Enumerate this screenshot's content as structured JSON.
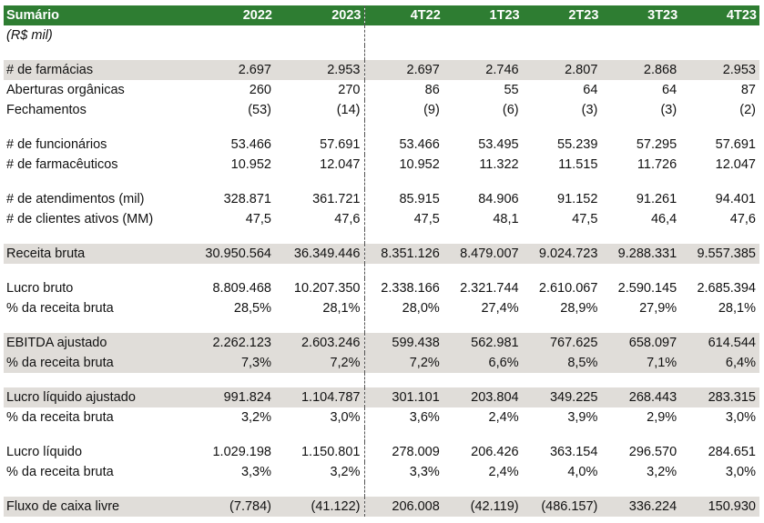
{
  "header": {
    "title": "Sumário",
    "columns": [
      "2022",
      "2023",
      "4T22",
      "1T23",
      "2T23",
      "3T23",
      "4T23"
    ]
  },
  "subtitle": "(R$ mil)",
  "rows": [
    {
      "label": "# de farmácias",
      "values": [
        "2.697",
        "2.953",
        "2.697",
        "2.746",
        "2.807",
        "2.868",
        "2.953"
      ]
    },
    {
      "label": "Aberturas orgânicas",
      "values": [
        "260",
        "270",
        "86",
        "55",
        "64",
        "64",
        "87"
      ]
    },
    {
      "label": "Fechamentos",
      "values": [
        "(53)",
        "(14)",
        "(9)",
        "(6)",
        "(3)",
        "(3)",
        "(2)"
      ]
    },
    {
      "label": "# de funcionários",
      "values": [
        "53.466",
        "57.691",
        "53.466",
        "53.495",
        "55.239",
        "57.295",
        "57.691"
      ]
    },
    {
      "label": "# de farmacêuticos",
      "values": [
        "10.952",
        "12.047",
        "10.952",
        "11.322",
        "11.515",
        "11.726",
        "12.047"
      ]
    },
    {
      "label": "# de atendimentos (mil)",
      "values": [
        "328.871",
        "361.721",
        "85.915",
        "84.906",
        "91.152",
        "91.261",
        "94.401"
      ]
    },
    {
      "label": "# de clientes ativos (MM)",
      "values": [
        "47,5",
        "47,6",
        "47,5",
        "48,1",
        "47,5",
        "46,4",
        "47,6"
      ]
    },
    {
      "label": "Receita bruta",
      "values": [
        "30.950.564",
        "36.349.446",
        "8.351.126",
        "8.479.007",
        "9.024.723",
        "9.288.331",
        "9.557.385"
      ]
    },
    {
      "label": "Lucro bruto",
      "values": [
        "8.809.468",
        "10.207.350",
        "2.338.166",
        "2.321.744",
        "2.610.067",
        "2.590.145",
        "2.685.394"
      ]
    },
    {
      "label": "% da receita bruta",
      "values": [
        "28,5%",
        "28,1%",
        "28,0%",
        "27,4%",
        "28,9%",
        "27,9%",
        "28,1%"
      ]
    },
    {
      "label": "EBITDA ajustado",
      "values": [
        "2.262.123",
        "2.603.246",
        "599.438",
        "562.981",
        "767.625",
        "658.097",
        "614.544"
      ]
    },
    {
      "label": "% da receita bruta",
      "values": [
        "7,3%",
        "7,2%",
        "7,2%",
        "6,6%",
        "8,5%",
        "7,1%",
        "6,4%"
      ]
    },
    {
      "label": "Lucro líquido ajustado",
      "values": [
        "991.824",
        "1.104.787",
        "301.101",
        "203.804",
        "349.225",
        "268.443",
        "283.315"
      ]
    },
    {
      "label": "% da receita bruta",
      "values": [
        "3,2%",
        "3,0%",
        "3,6%",
        "2,4%",
        "3,9%",
        "2,9%",
        "3,0%"
      ]
    },
    {
      "label": "Lucro líquido",
      "values": [
        "1.029.198",
        "1.150.801",
        "278.009",
        "206.426",
        "363.154",
        "296.570",
        "284.651"
      ]
    },
    {
      "label": "% da receita bruta",
      "values": [
        "3,3%",
        "3,2%",
        "3,3%",
        "2,4%",
        "4,0%",
        "3,2%",
        "3,0%"
      ]
    },
    {
      "label": "Fluxo de caixa livre",
      "values": [
        "(7.784)",
        "(41.122)",
        "206.008",
        "(42.119)",
        "(486.157)",
        "336.224",
        "150.930"
      ]
    }
  ],
  "colors": {
    "header_bg": "#2e7d32",
    "shade_bg": "#e0ddd9"
  }
}
